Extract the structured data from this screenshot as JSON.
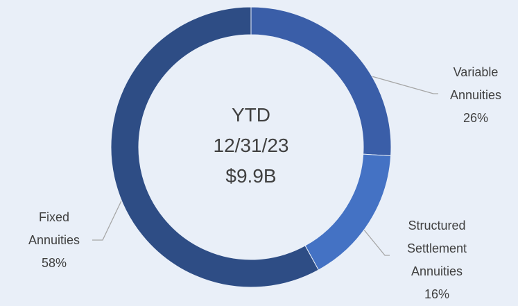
{
  "chart_data": {
    "type": "donut",
    "categories": [
      "Variable Annuities",
      "Structured Settlement Annuities",
      "Fixed Annuities"
    ],
    "values": [
      26,
      16,
      58
    ],
    "value_labels": [
      "26%",
      "16%",
      "58%"
    ],
    "colors": [
      "#3a5ea8",
      "#4472c4",
      "#2e4d85"
    ],
    "center_text": [
      "YTD",
      "12/31/23",
      "$9.9B"
    ]
  }
}
